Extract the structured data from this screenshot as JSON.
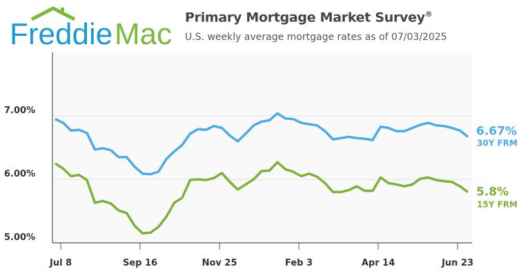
{
  "logo": {
    "part1": "Freddie",
    "part2": "Mac",
    "colors": {
      "blue": "#1A9AD6",
      "green": "#7AB93A"
    }
  },
  "header": {
    "title": "Primary Mortgage Market Survey",
    "title_mark": "®",
    "subtitle": "U.S. weekly average mortgage rates as of 07/03/2025"
  },
  "chart_data": {
    "type": "line",
    "title": "Primary Mortgage Market Survey®",
    "subtitle": "U.S. weekly average mortgage rates as of 07/03/2025",
    "ylim": [
      5.0,
      8.0
    ],
    "yticks": [
      {
        "value": 5.0,
        "label": "5.00%"
      },
      {
        "value": 6.0,
        "label": "6.00%"
      },
      {
        "value": 7.0,
        "label": "7.00%"
      }
    ],
    "xticks": [
      {
        "week_index": 0.7,
        "label": "Jul 8"
      },
      {
        "week_index": 10.7,
        "label": "Sep 16"
      },
      {
        "week_index": 20.7,
        "label": "Nov 25"
      },
      {
        "week_index": 30.7,
        "label": "Feb 3"
      },
      {
        "week_index": 40.7,
        "label": "Apr 14"
      },
      {
        "week_index": 50.7,
        "label": "Jun 23"
      }
    ],
    "grid": "horizontal",
    "series": [
      {
        "name": "30Y FRM",
        "end_label": "6.67%",
        "color": "#4AABE8",
        "values": [
          6.95,
          6.89,
          6.77,
          6.78,
          6.73,
          6.47,
          6.49,
          6.46,
          6.35,
          6.35,
          6.2,
          6.09,
          6.08,
          6.12,
          6.32,
          6.44,
          6.54,
          6.72,
          6.79,
          6.78,
          6.84,
          6.81,
          6.69,
          6.6,
          6.72,
          6.85,
          6.91,
          6.93,
          7.04,
          6.96,
          6.95,
          6.89,
          6.87,
          6.85,
          6.76,
          6.63,
          6.65,
          6.67,
          6.65,
          6.64,
          6.62,
          6.83,
          6.81,
          6.76,
          6.76,
          6.81,
          6.86,
          6.89,
          6.85,
          6.84,
          6.81,
          6.77,
          6.67
        ]
      },
      {
        "name": "15Y FRM",
        "end_label": "5.8%",
        "color": "#7DB23A",
        "values": [
          6.25,
          6.17,
          6.05,
          6.07,
          5.99,
          5.63,
          5.66,
          5.62,
          5.51,
          5.47,
          5.27,
          5.15,
          5.16,
          5.25,
          5.41,
          5.63,
          5.71,
          5.99,
          6.0,
          5.99,
          6.02,
          6.1,
          5.96,
          5.84,
          5.92,
          6.0,
          6.13,
          6.14,
          6.27,
          6.16,
          6.12,
          6.05,
          6.09,
          6.04,
          5.94,
          5.8,
          5.8,
          5.83,
          5.89,
          5.82,
          5.82,
          6.03,
          5.94,
          5.92,
          5.89,
          5.92,
          6.01,
          6.03,
          5.99,
          5.97,
          5.96,
          5.89,
          5.8
        ]
      }
    ]
  }
}
